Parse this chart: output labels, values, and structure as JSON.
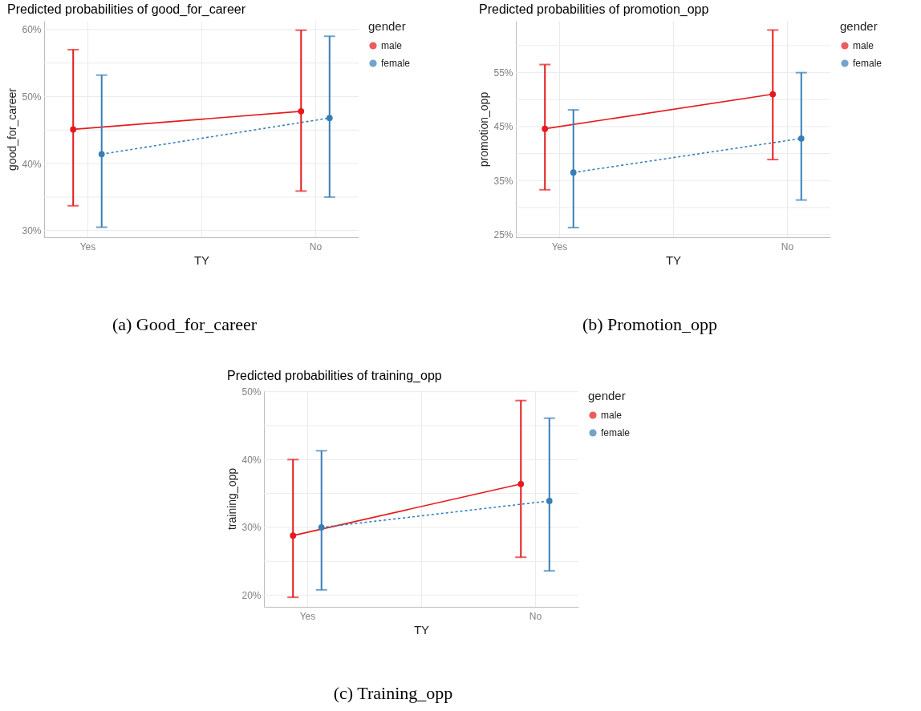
{
  "chart_data": [
    {
      "type": "line",
      "title": "Predicted probabilities of good_for_career",
      "xlabel": "TY",
      "ylabel": "good_for_career",
      "legend_title": "gender",
      "legend": "right",
      "grid": true,
      "marker": "circle",
      "categories": [
        "Yes",
        "No"
      ],
      "ylim": [
        29.0,
        61.3
      ],
      "yticks": [
        {
          "value": 30,
          "label": "30%"
        },
        {
          "value": 35,
          "label": null
        },
        {
          "value": 40,
          "label": "40%"
        },
        {
          "value": 45,
          "label": null
        },
        {
          "value": 50,
          "label": "50%"
        },
        {
          "value": 55,
          "label": null
        },
        {
          "value": 60,
          "label": "60%"
        }
      ],
      "series": [
        {
          "name": "male",
          "color": "#e41a1c",
          "line_style": "solid",
          "values": [
            45.1,
            47.8
          ],
          "errors": [
            [
              33.7,
              57.0
            ],
            [
              35.9,
              59.9
            ]
          ]
        },
        {
          "name": "female",
          "color": "#377eb8",
          "line_style": "dashed",
          "values": [
            41.4,
            46.8
          ],
          "errors": [
            [
              30.5,
              53.2
            ],
            [
              35.0,
              59.0
            ]
          ]
        }
      ],
      "annotations": [
        "(a) Good_for_career"
      ]
    },
    {
      "type": "line",
      "title": "Predicted probabilities of promotion_opp",
      "xlabel": "TY",
      "ylabel": "promotion_opp",
      "legend_title": "gender",
      "legend": "right",
      "grid": true,
      "marker": "circle",
      "categories": [
        "Yes",
        "No"
      ],
      "ylim": [
        24.5,
        64.6
      ],
      "yticks": [
        {
          "value": 25,
          "label": "25%"
        },
        {
          "value": 30,
          "label": null
        },
        {
          "value": 35,
          "label": "35%"
        },
        {
          "value": 40,
          "label": null
        },
        {
          "value": 45,
          "label": "45%"
        },
        {
          "value": 50,
          "label": null
        },
        {
          "value": 55,
          "label": "55%"
        },
        {
          "value": 60,
          "label": null
        }
      ],
      "series": [
        {
          "name": "male",
          "color": "#e41a1c",
          "line_style": "solid",
          "values": [
            44.6,
            51.0
          ],
          "errors": [
            [
              33.3,
              56.5
            ],
            [
              38.9,
              62.9
            ]
          ]
        },
        {
          "name": "female",
          "color": "#377eb8",
          "line_style": "dashed",
          "values": [
            36.5,
            42.8
          ],
          "errors": [
            [
              26.3,
              48.1
            ],
            [
              31.4,
              55.0
            ]
          ]
        }
      ],
      "annotations": [
        "(b) Promotion_opp"
      ]
    },
    {
      "type": "line",
      "title": "Predicted probabilities of training_opp",
      "xlabel": "TY",
      "ylabel": "training_opp",
      "legend_title": "gender",
      "legend": "right",
      "grid": true,
      "marker": "circle",
      "categories": [
        "Yes",
        "No"
      ],
      "ylim": [
        18.3,
        50.2
      ],
      "yticks": [
        {
          "value": 20,
          "label": "20%"
        },
        {
          "value": 25,
          "label": null
        },
        {
          "value": 30,
          "label": "30%"
        },
        {
          "value": 35,
          "label": null
        },
        {
          "value": 40,
          "label": "40%"
        },
        {
          "value": 45,
          "label": null
        },
        {
          "value": 50,
          "label": "50%"
        }
      ],
      "series": [
        {
          "name": "male",
          "color": "#e41a1c",
          "line_style": "solid",
          "values": [
            28.8,
            36.4
          ],
          "errors": [
            [
              19.7,
              40.0
            ],
            [
              25.6,
              48.7
            ]
          ]
        },
        {
          "name": "female",
          "color": "#377eb8",
          "line_style": "dashed",
          "values": [
            30.0,
            33.9
          ],
          "errors": [
            [
              20.8,
              41.3
            ],
            [
              23.6,
              46.1
            ]
          ]
        }
      ],
      "annotations": [
        "(c) Training_opp"
      ]
    }
  ]
}
